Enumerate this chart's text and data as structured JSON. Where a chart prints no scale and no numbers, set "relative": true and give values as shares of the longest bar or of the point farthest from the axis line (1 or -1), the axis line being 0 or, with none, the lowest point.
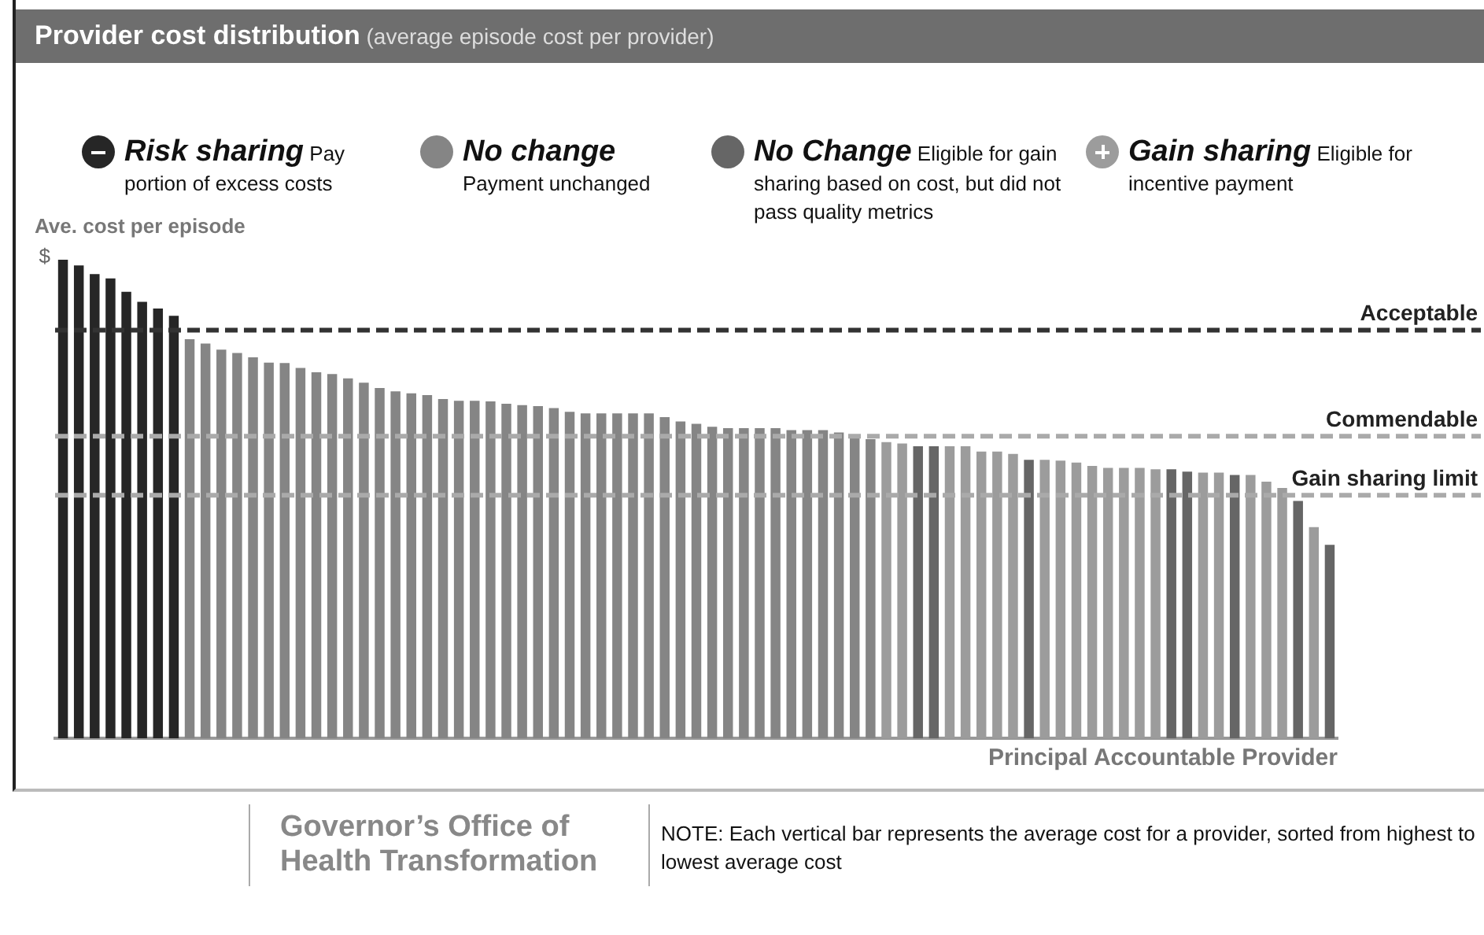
{
  "chart_data": {
    "type": "bar",
    "title": "Provider cost distribution",
    "subtitle": "(average episode cost per provider)",
    "xlabel": "Principal Accountable Provider",
    "ylabel": "Ave. cost per episode",
    "relative": true,
    "stacked": true,
    "legend": "top",
    "grid": false,
    "categories": [
      null,
      null,
      null,
      null,
      null,
      null,
      null,
      null,
      null,
      null,
      null,
      null,
      null,
      null,
      null,
      null,
      null,
      null,
      null,
      null,
      null,
      null,
      null,
      null,
      null,
      null,
      null,
      null,
      null,
      null,
      null,
      null,
      null,
      null,
      null,
      null,
      null,
      null,
      null,
      null,
      null,
      null,
      null,
      null,
      null,
      null,
      null,
      null,
      null,
      null,
      null,
      null,
      null,
      null,
      null,
      null,
      null,
      null,
      null,
      null,
      null,
      null,
      null,
      null,
      null,
      null,
      null,
      null,
      null,
      null,
      null,
      null,
      null,
      null,
      null,
      null,
      null,
      null,
      null,
      null,
      null
    ],
    "series": [
      {
        "name": "Risk sharing",
        "color": "#262626",
        "values": [
          1,
          0.988,
          0.97,
          0.961,
          0.933,
          0.912,
          0.898,
          0.883,
          null,
          null,
          null,
          null,
          null,
          null,
          null,
          null,
          null,
          null,
          null,
          null,
          null,
          null,
          null,
          null,
          null,
          null,
          null,
          null,
          null,
          null,
          null,
          null,
          null,
          null,
          null,
          null,
          null,
          null,
          null,
          null,
          null,
          null,
          null,
          null,
          null,
          null,
          null,
          null,
          null,
          null,
          null,
          null,
          null,
          null,
          null,
          null,
          null,
          null,
          null,
          null,
          null,
          null,
          null,
          null,
          null,
          null,
          null,
          null,
          null,
          null,
          null,
          null,
          null,
          null,
          null,
          null,
          null,
          null,
          null,
          null,
          null
        ]
      },
      {
        "name": "No change",
        "color": "#858585",
        "values": [
          null,
          null,
          null,
          null,
          null,
          null,
          null,
          null,
          0.834,
          0.825,
          0.812,
          0.805,
          0.796,
          0.785,
          0.784,
          0.774,
          0.765,
          0.761,
          0.752,
          0.743,
          0.732,
          0.725,
          0.721,
          0.717,
          0.709,
          0.705,
          0.705,
          0.704,
          0.699,
          0.696,
          0.694,
          0.69,
          0.682,
          0.679,
          0.679,
          0.679,
          0.679,
          0.679,
          0.671,
          0.662,
          0.657,
          0.651,
          0.648,
          0.648,
          0.648,
          0.648,
          0.644,
          0.644,
          0.644,
          0.639,
          0.634,
          0.625,
          null,
          null,
          null,
          null,
          null,
          null,
          null,
          null,
          null,
          null,
          null,
          null,
          null,
          null,
          null,
          null,
          null,
          null,
          null,
          null,
          null,
          null,
          null,
          null,
          null,
          null,
          null,
          null,
          null
        ]
      },
      {
        "name": "No Change",
        "color": "#666666",
        "values": [
          null,
          null,
          null,
          null,
          null,
          null,
          null,
          null,
          null,
          null,
          null,
          null,
          null,
          null,
          null,
          null,
          null,
          null,
          null,
          null,
          null,
          null,
          null,
          null,
          null,
          null,
          null,
          null,
          null,
          null,
          null,
          null,
          null,
          null,
          null,
          null,
          null,
          null,
          null,
          null,
          null,
          null,
          null,
          null,
          null,
          null,
          null,
          null,
          null,
          null,
          null,
          null,
          null,
          null,
          0.61,
          0.61,
          null,
          null,
          null,
          null,
          null,
          0.582,
          null,
          null,
          null,
          null,
          null,
          null,
          null,
          null,
          0.562,
          0.557,
          null,
          null,
          0.55,
          null,
          null,
          null,
          0.496,
          null,
          0.404
        ]
      },
      {
        "name": "Gain sharing",
        "color": "#9c9c9c",
        "values": [
          null,
          null,
          null,
          null,
          null,
          null,
          null,
          null,
          null,
          null,
          null,
          null,
          null,
          null,
          null,
          null,
          null,
          null,
          null,
          null,
          null,
          null,
          null,
          null,
          null,
          null,
          null,
          null,
          null,
          null,
          null,
          null,
          null,
          null,
          null,
          null,
          null,
          null,
          null,
          null,
          null,
          null,
          null,
          null,
          null,
          null,
          null,
          null,
          null,
          null,
          null,
          null,
          0.619,
          0.616,
          null,
          null,
          0.61,
          0.61,
          0.599,
          0.599,
          0.594,
          null,
          0.582,
          0.58,
          0.576,
          0.569,
          0.565,
          0.565,
          0.565,
          0.562,
          null,
          null,
          0.555,
          0.555,
          null,
          0.55,
          0.536,
          0.523,
          null,
          0.441,
          null
        ]
      }
    ],
    "ref_lines": [
      {
        "axis": "y",
        "value": 0.853,
        "label": "Acceptable",
        "color": "#333333",
        "line_style": "dashed"
      },
      {
        "axis": "y",
        "value": 0.631,
        "label": "Commendable",
        "color": "#aaaaaa",
        "line_style": "dashed"
      },
      {
        "axis": "y",
        "value": 0.508,
        "label": "Gain sharing limit",
        "color": "#aaaaaa",
        "line_style": "dashed"
      }
    ],
    "annotations": [
      "$",
      "Pay portion of excess costs",
      "Payment unchanged",
      "Eligible for gain sharing based on cost, but did not pass quality metrics",
      "Eligible for incentive payment",
      "Governor’s Office of Health Transformation",
      "NOTE: Each vertical bar represents the average cost for a provider, sorted from highest to lowest average cost"
    ]
  }
}
